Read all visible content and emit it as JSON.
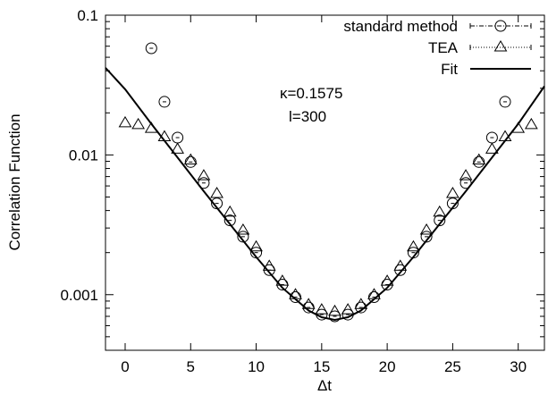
{
  "chart_data": {
    "type": "scatter",
    "title": "",
    "xlabel": "Δt",
    "ylabel": "Correlation Function",
    "xlim": [
      -1.5,
      32
    ],
    "ylim": [
      0.0004,
      0.1
    ],
    "yscale": "log",
    "grid": false,
    "legend_position": "top-right",
    "xticks": [
      0,
      5,
      10,
      15,
      20,
      25,
      30
    ],
    "xtick_labels": [
      "0",
      "5",
      "10",
      "15",
      "20",
      "25",
      "30"
    ],
    "yticks": [
      0.001,
      0.01,
      0.1
    ],
    "ytick_labels": [
      "0.001",
      "0.01",
      "0.1"
    ],
    "annotations": [
      "κ=0.1575",
      "l=300"
    ],
    "series": [
      {
        "name": "standard method",
        "marker": "circle",
        "x": [
          2,
          3,
          4,
          5,
          6,
          7,
          8,
          9,
          10,
          11,
          12,
          13,
          14,
          15,
          16,
          17,
          18,
          19,
          20,
          21,
          22,
          23,
          24,
          25,
          26,
          27,
          28,
          29
        ],
        "y": [
          0.058,
          0.024,
          0.0133,
          0.0089,
          0.0063,
          0.0045,
          0.0034,
          0.0026,
          0.002,
          0.0015,
          0.00118,
          0.00096,
          0.00081,
          0.00072,
          0.0007,
          0.00072,
          0.00081,
          0.00096,
          0.00118,
          0.0015,
          0.002,
          0.0026,
          0.0034,
          0.0045,
          0.0063,
          0.0089,
          0.0133,
          0.024
        ]
      },
      {
        "name": "TEA",
        "marker": "triangle",
        "x": [
          0,
          1,
          2,
          3,
          4,
          5,
          6,
          7,
          8,
          9,
          10,
          11,
          12,
          13,
          14,
          15,
          16,
          17,
          18,
          19,
          20,
          21,
          22,
          23,
          24,
          25,
          26,
          27,
          28,
          29,
          30,
          31
        ],
        "y": [
          0.017,
          0.0165,
          0.0155,
          0.0135,
          0.011,
          0.0092,
          0.0071,
          0.0053,
          0.0039,
          0.0029,
          0.0022,
          0.0016,
          0.00125,
          0.001,
          0.00085,
          0.00078,
          0.00076,
          0.00078,
          0.00085,
          0.001,
          0.00125,
          0.0016,
          0.0022,
          0.0029,
          0.0039,
          0.0053,
          0.0071,
          0.0092,
          0.011,
          0.0135,
          0.0155,
          0.0165
        ]
      },
      {
        "name": "Fit",
        "marker": "line",
        "x": [
          -1.5,
          0,
          2,
          4,
          6,
          8,
          10,
          12,
          14,
          15,
          16,
          17,
          18,
          20,
          22,
          24,
          26,
          28,
          30,
          32
        ],
        "y": [
          0.042,
          0.0295,
          0.0167,
          0.0096,
          0.0055,
          0.0032,
          0.00186,
          0.00112,
          0.00077,
          0.00069,
          0.00066,
          0.00069,
          0.00077,
          0.00112,
          0.00186,
          0.0032,
          0.0055,
          0.0096,
          0.0167,
          0.031
        ]
      }
    ]
  }
}
